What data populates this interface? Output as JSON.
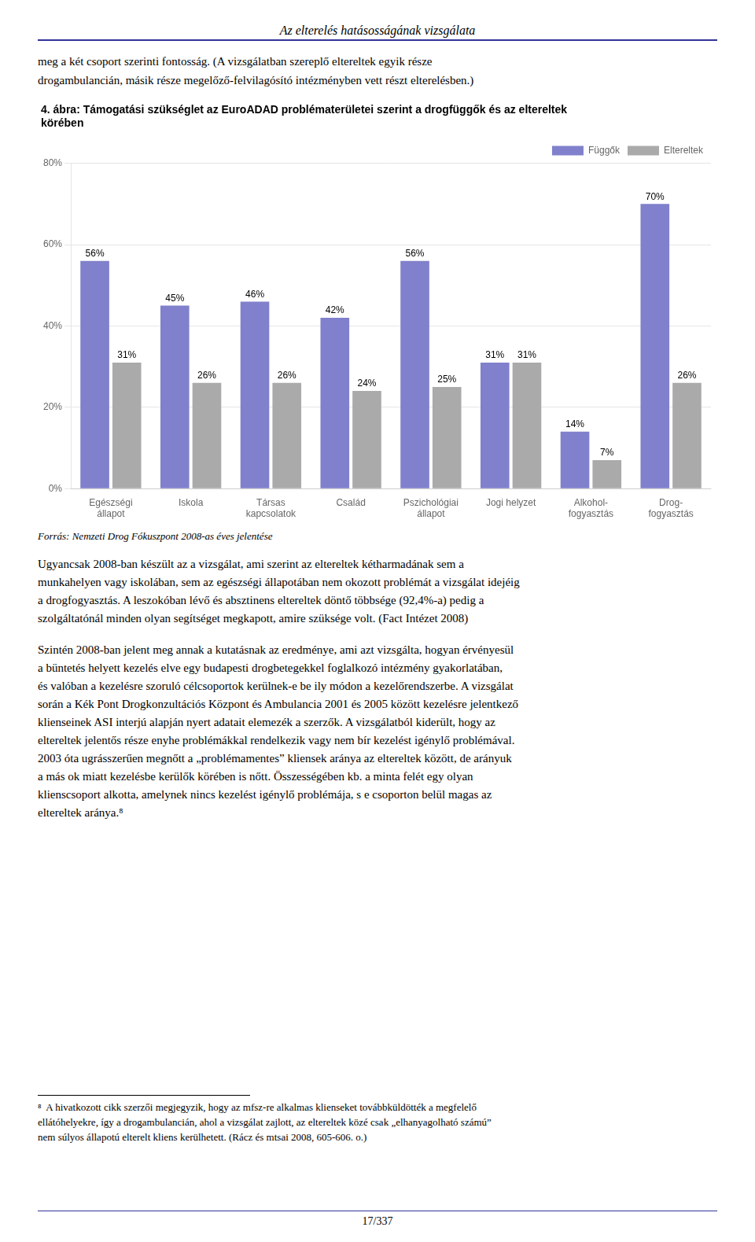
{
  "page_title": "Az elterelés hatásosságának vizsgálata",
  "intro": [
    "meg a két csoport szerinti fontosság. (A vizsgálatban szereplő eltereltek egyik része",
    "drogambulancián, másik része megelőző-felvilagósító intézményben vett részt elterelésben.)"
  ],
  "chart_data": {
    "type": "bar",
    "title": [
      "4. ábra: Támogatási szükséglet az EuroADAD problématerületei szerint a drogfüggők és az eltereltek",
      "körében"
    ],
    "categories": [
      "Egészségi\nállapot",
      "Iskola",
      "Társas\nkapcsolatok",
      "Család",
      "Pszichológiai\nállapot",
      "Jogi helyzet",
      "Alkohol-\nfogyasztás",
      "Drog-\nfogyasztás"
    ],
    "series": [
      {
        "name": "Függők",
        "color": "#8080CC",
        "values": [
          56,
          45,
          46,
          42,
          56,
          31,
          14,
          70
        ],
        "value_labels": [
          "56%",
          "45%",
          "46%",
          "42%",
          "56%",
          "31%",
          "14%",
          "70%"
        ]
      },
      {
        "name": "Eltereltek",
        "color": "#AAAAAA",
        "values": [
          31,
          26,
          26,
          24,
          25,
          31,
          7,
          26
        ],
        "value_labels": [
          "31%",
          "26%",
          "26%",
          "24%",
          "25%",
          "31%",
          "7%",
          "26%"
        ]
      }
    ],
    "ylim": [
      0,
      80
    ],
    "yticks": [
      {
        "value": 0,
        "label": "0%"
      },
      {
        "value": 20,
        "label": "20%"
      },
      {
        "value": 40,
        "label": "40%"
      },
      {
        "value": 60,
        "label": "60%"
      },
      {
        "value": 80,
        "label": "80%"
      }
    ],
    "grid": true,
    "legend": "upper right",
    "data_labels": true
  },
  "source_text": "Forrás: Nemzeti Drog Fókuszpont 2008-as éves jelentése",
  "body_text1": [
    "Ugyancsak 2008-ban készült az a vizsgálat, ami szerint az eltereltek kétharmadának sem a",
    "munkahelyen vagy iskolában, sem az egészségi állapotában nem okozott problémát a vizsgálat idejéig",
    "a drogfogyasztás. A leszokóban lévő és absztinens eltereltek döntő többsége (92,4%-a) pedig a",
    "szolgáltatónál minden olyan segítséget megkapott, amire szüksége volt. (Fact Intézet 2008)"
  ],
  "body_text2": [
    "Szintén 2008-ban jelent meg annak a kutatásnak az eredménye, ami azt vizsgálta, hogyan érvényesül",
    "a büntetés helyett kezelés elve egy budapesti drogbetegekkel foglalkozó intézmény gyakorlatában,",
    "és valóban a kezelésre szoruló célcsoportok kerülnek-e be ily módon a kezelőrendszerbe. A vizsgálat",
    "során a Kék Pont Drogkonzultációs Központ és Ambulancia 2001 és 2005 között kezelésre jelentkező",
    "klienseinek ASI interjú alapján nyert adatait elemezék a szerzők. A vizsgálatból kiderült, hogy az",
    "eltereltek jelentős része enyhe problémákkal rendelkezik vagy nem bír kezelést igénylő problémával.",
    "2003 óta ugrásszerűen megnőtt a „problémamentes” kliensek aránya az eltereltek között, de arányuk",
    "a más ok miatt kezelésbe kerülők körében is nőtt. Összességében kb. a minta felét egy olyan",
    "klienscsoport alkotta, amelynek nincs kezelést igénylő problémája, s e csoporton belül magas az",
    "eltereltek aránya.⁸"
  ],
  "footnote_text": [
    "⁸  A hivatkozott cikk szerzői megjegyzik, hogy az mfsz-re alkalmas klienseket továbbküldötték a megfelelő",
    "ellátóhelyekre, így a drogambulancián, ahol a vizsgálat zajlott, az eltereltek közé csak „elhanyagolható számú”",
    "nem súlyos állapotú elterelt kliens kerülhetett. (Rácz és mtsai 2008, 605-606. o.)"
  ],
  "page_number": "17/337"
}
